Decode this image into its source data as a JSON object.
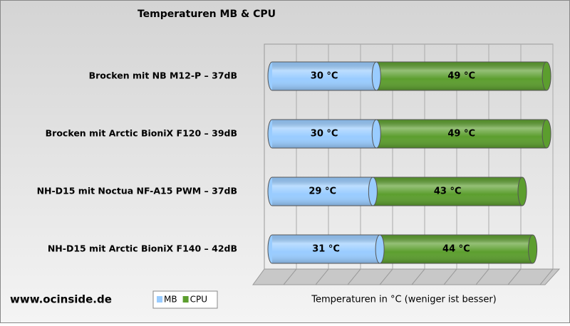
{
  "chart_data": {
    "type": "bar",
    "orientation": "horizontal",
    "stacked": true,
    "title": "Temperaturen MB & CPU",
    "x_label": "Temperaturen in °C (weniger ist besser)",
    "watermark": "www.ocinside.de",
    "categories": [
      "Brocken mit NB M12-P – 37dB",
      "Brocken mit Arctic BioniX F120 – 39dB",
      "NH-D15 mit Noctua NF-A15 PWM – 37dB",
      "NH-D15 mit Arctic BioniX F140 – 42dB"
    ],
    "series": [
      {
        "name": "MB",
        "color": "#99ccff",
        "values": [
          30,
          30,
          29,
          31
        ],
        "value_labels": [
          "30 °C",
          "30 °C",
          "29 °C",
          "31 °C"
        ]
      },
      {
        "name": "CPU",
        "color": "#5c9e2e",
        "values": [
          49,
          49,
          43,
          44
        ],
        "value_labels": [
          "49 °C",
          "49 °C",
          "43 °C",
          "44 °C"
        ]
      }
    ],
    "xlim": [
      0,
      80
    ],
    "grid": true
  }
}
